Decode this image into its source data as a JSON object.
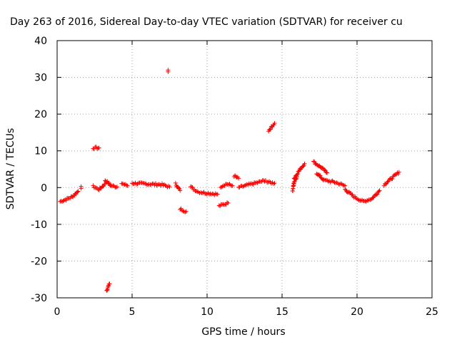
{
  "chart_data": {
    "type": "scatter",
    "title": "Day 263 of 2016, Sidereal Day-to-day VTEC variation (SDTVAR) for receiver cu",
    "xlabel": "GPS time / hours",
    "ylabel": "SDTVAR / TECUs",
    "xlim": [
      0,
      25
    ],
    "ylim": [
      -30,
      40
    ],
    "xticks": [
      0,
      5,
      10,
      15,
      20,
      25
    ],
    "yticks": [
      -30,
      -20,
      -10,
      0,
      10,
      20,
      30,
      40
    ],
    "xtick_labels": [
      "0",
      "5",
      "10",
      "15",
      "20",
      "25"
    ],
    "ytick_labels": [
      "-30",
      "-20",
      "-10",
      "0",
      "10",
      "20",
      "30",
      "40"
    ],
    "grid": true,
    "marker": "+",
    "marker_color": "#ff0000",
    "series": [
      {
        "name": "SDTVAR",
        "segments": [
          {
            "x": [
              0.2,
              0.6,
              1.0,
              1.4
            ],
            "y": [
              -3.8,
              -3.2,
              -2.5,
              -1.0
            ]
          },
          {
            "x": [
              1.6
            ],
            "y": [
              -0.2
            ]
          },
          {
            "x": [
              2.4,
              2.8
            ],
            "y": [
              10.8,
              10.8
            ]
          },
          {
            "x": [
              2.4,
              2.8,
              3.2
            ],
            "y": [
              0.3,
              -0.5,
              1.0
            ]
          },
          {
            "x": [
              3.2,
              3.6,
              4.0
            ],
            "y": [
              2.0,
              0.5,
              0.2
            ]
          },
          {
            "x": [
              3.3,
              3.4,
              3.5
            ],
            "y": [
              -28.0,
              -27.0,
              -26.2
            ]
          },
          {
            "x": [
              4.3,
              4.7
            ],
            "y": [
              1.2,
              0.5
            ]
          },
          {
            "x": [
              5.0,
              6.0,
              7.0,
              7.5
            ],
            "y": [
              1.2,
              1.0,
              0.8,
              0.2
            ]
          },
          {
            "x": [
              7.4
            ],
            "y": [
              31.5
            ]
          },
          {
            "x": [
              7.9,
              8.2
            ],
            "y": [
              1.0,
              -0.8
            ]
          },
          {
            "x": [
              8.2,
              8.6
            ],
            "y": [
              -5.8,
              -6.5
            ]
          },
          {
            "x": [
              8.9,
              9.4
            ],
            "y": [
              0.2,
              -1.2
            ]
          },
          {
            "x": [
              9.5,
              10.0,
              10.7
            ],
            "y": [
              -1.2,
              -1.5,
              -1.8
            ]
          },
          {
            "x": [
              10.8,
              11.4
            ],
            "y": [
              -5.0,
              -4.2
            ]
          },
          {
            "x": [
              10.9,
              11.3,
              11.7
            ],
            "y": [
              0.3,
              1.0,
              0.5
            ]
          },
          {
            "x": [
              11.8,
              12.1
            ],
            "y": [
              3.2,
              2.5
            ]
          },
          {
            "x": [
              12.1,
              12.8,
              13.5,
              13.9
            ],
            "y": [
              0.0,
              0.8,
              1.5,
              2.0
            ]
          },
          {
            "x": [
              14.0,
              14.5
            ],
            "y": [
              1.5,
              1.2
            ]
          },
          {
            "x": [
              14.1,
              14.5
            ],
            "y": [
              15.5,
              17.5
            ]
          },
          {
            "x": [
              15.7,
              15.8,
              16.0
            ],
            "y": [
              -1.0,
              1.5,
              3.0
            ]
          },
          {
            "x": [
              15.8,
              16.2,
              16.5
            ],
            "y": [
              2.5,
              5.0,
              6.5
            ]
          },
          {
            "x": [
              17.1,
              17.6,
              18.0
            ],
            "y": [
              7.0,
              5.5,
              4.0
            ]
          },
          {
            "x": [
              17.3,
              17.8,
              18.5,
              19.2
            ],
            "y": [
              4.0,
              2.0,
              1.5,
              0.5
            ]
          },
          {
            "x": [
              19.2,
              19.8,
              20.4,
              21.0,
              21.5
            ],
            "y": [
              -0.5,
              -2.5,
              -3.8,
              -3.0,
              -0.8
            ]
          },
          {
            "x": [
              21.8,
              22.3,
              22.8
            ],
            "y": [
              0.8,
              2.5,
              4.2
            ]
          }
        ]
      }
    ]
  }
}
